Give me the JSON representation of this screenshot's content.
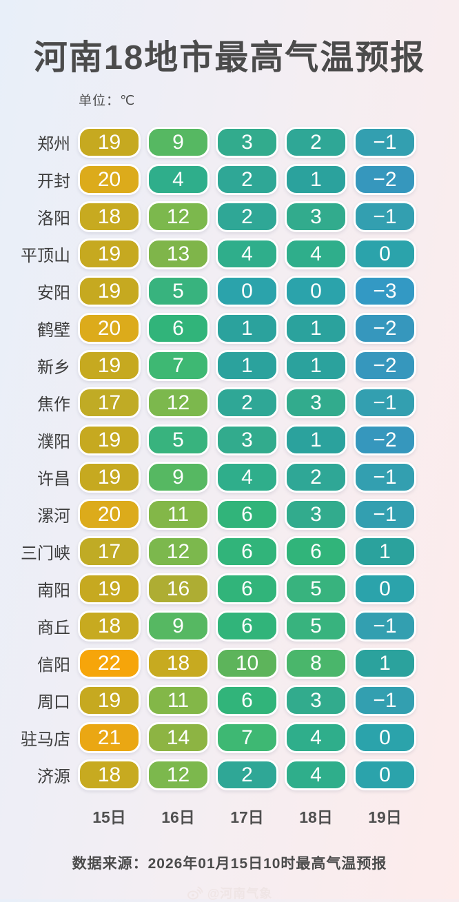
{
  "title": "河南18地市最高气温预报",
  "unit_label": "单位：℃",
  "source": "数据来源：2026年01月15日10时最高气温预报",
  "watermark": {
    "icon": "weibo-icon",
    "text": "@河南气象"
  },
  "chart_data": {
    "type": "heatmap",
    "title": "河南18地市最高气温预报",
    "unit": "℃",
    "columns": [
      "15日",
      "16日",
      "17日",
      "18日",
      "19日"
    ],
    "rows": [
      {
        "city": "郑州",
        "values": [
          19,
          9,
          3,
          2,
          -1
        ]
      },
      {
        "city": "开封",
        "values": [
          20,
          4,
          2,
          1,
          -2
        ]
      },
      {
        "city": "洛阳",
        "values": [
          18,
          12,
          2,
          3,
          -1
        ]
      },
      {
        "city": "平顶山",
        "values": [
          19,
          13,
          4,
          4,
          0
        ]
      },
      {
        "city": "安阳",
        "values": [
          19,
          5,
          0,
          0,
          -3
        ]
      },
      {
        "city": "鹤壁",
        "values": [
          20,
          6,
          1,
          1,
          -2
        ]
      },
      {
        "city": "新乡",
        "values": [
          19,
          7,
          1,
          1,
          -2
        ]
      },
      {
        "city": "焦作",
        "values": [
          17,
          12,
          2,
          3,
          -1
        ]
      },
      {
        "city": "濮阳",
        "values": [
          19,
          5,
          3,
          1,
          -2
        ]
      },
      {
        "city": "许昌",
        "values": [
          19,
          9,
          4,
          2,
          -1
        ]
      },
      {
        "city": "漯河",
        "values": [
          20,
          11,
          6,
          3,
          -1
        ]
      },
      {
        "city": "三门峡",
        "values": [
          17,
          12,
          6,
          6,
          1
        ]
      },
      {
        "city": "南阳",
        "values": [
          19,
          16,
          6,
          5,
          0
        ]
      },
      {
        "city": "商丘",
        "values": [
          18,
          9,
          6,
          5,
          -1
        ]
      },
      {
        "city": "信阳",
        "values": [
          22,
          18,
          10,
          8,
          1
        ]
      },
      {
        "city": "周口",
        "values": [
          19,
          11,
          6,
          3,
          -1
        ]
      },
      {
        "city": "驻马店",
        "values": [
          21,
          14,
          7,
          4,
          0
        ]
      },
      {
        "city": "济源",
        "values": [
          18,
          12,
          2,
          4,
          0
        ]
      }
    ],
    "color_scale": {
      "22": "#f6a50a",
      "21": "#eaa713",
      "20": "#dcab1b",
      "19": "#c6a920",
      "18": "#c7aa20",
      "17": "#c0ab25",
      "16": "#aead33",
      "14": "#8db443",
      "13": "#7fb54a",
      "12": "#7cb84d",
      "11": "#83b748",
      "10": "#5db45b",
      "9": "#56b862",
      "8": "#4ab66b",
      "7": "#3eb873",
      "6": "#31b47a",
      "5": "#38b37e",
      "4": "#2fae8b",
      "3": "#32ab8d",
      "2": "#2fa796",
      "1": "#2ba29d",
      "0": "#2ba3ab",
      "-1": "#339fb0",
      "-2": "#3697bd",
      "-3": "#3399c4"
    },
    "background_gradient": [
      "#e8eff9",
      "#fdeceb"
    ],
    "legend": "none",
    "grid": false
  }
}
